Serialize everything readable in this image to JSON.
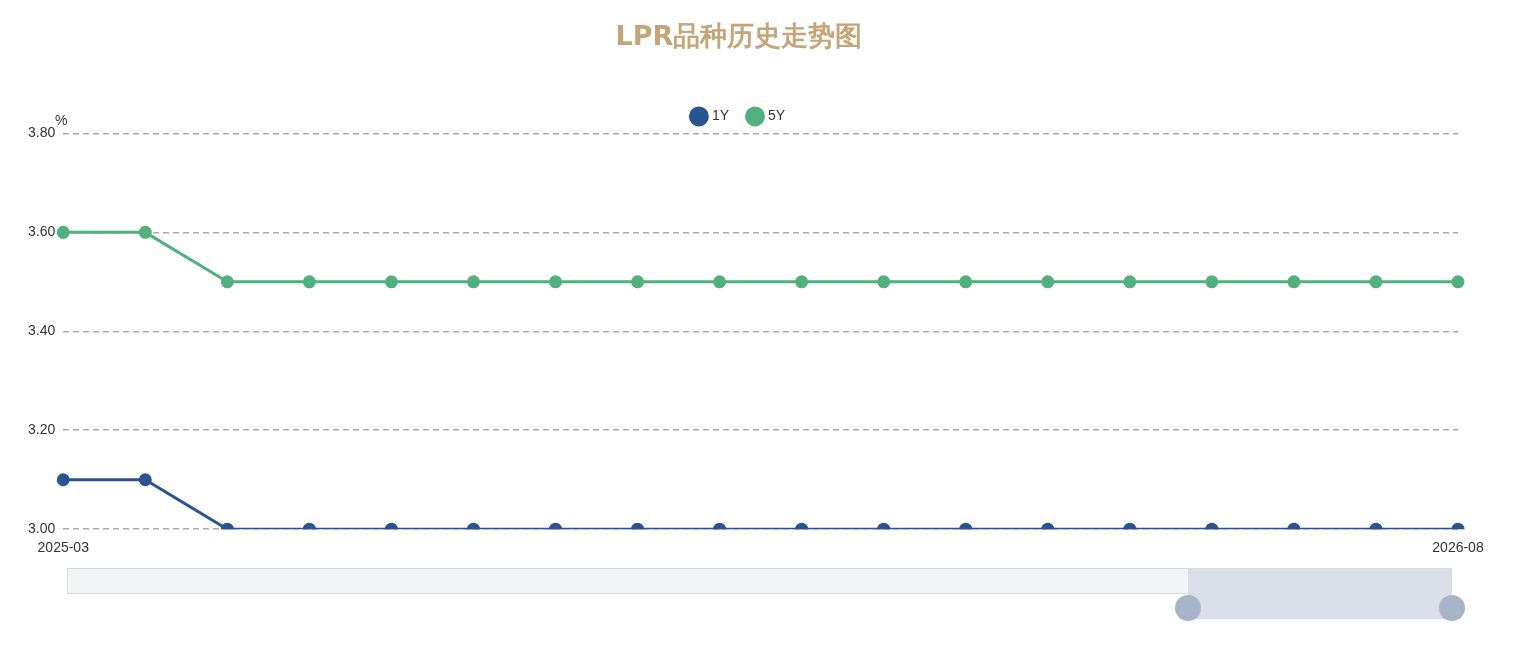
{
  "chart_data": {
    "type": "line",
    "title": "LPR品种历史走势图",
    "ylabel": "%",
    "categories": [
      "2025-03",
      null,
      null,
      null,
      null,
      null,
      null,
      null,
      null,
      null,
      null,
      null,
      null,
      null,
      null,
      null,
      null,
      "2026-08"
    ],
    "series": [
      {
        "name": "1Y",
        "color": "#2a5391",
        "values": [
          3.1,
          3.1,
          3.0,
          3.0,
          3.0,
          3.0,
          3.0,
          3.0,
          3.0,
          3.0,
          3.0,
          3.0,
          3.0,
          3.0,
          3.0,
          3.0,
          3.0,
          3.0
        ]
      },
      {
        "name": "5Y",
        "color": "#52b07e",
        "values": [
          3.6,
          3.6,
          3.5,
          3.5,
          3.5,
          3.5,
          3.5,
          3.5,
          3.5,
          3.5,
          3.5,
          3.5,
          3.5,
          3.5,
          3.5,
          3.5,
          3.5,
          3.5
        ]
      }
    ],
    "ylim": [
      3.0,
      3.8
    ],
    "yticks": [
      {
        "value": 3.0,
        "label": "3.00"
      },
      {
        "value": 3.2,
        "label": "3.20"
      },
      {
        "value": 3.4,
        "label": "3.40"
      },
      {
        "value": 3.6,
        "label": "3.60"
      },
      {
        "value": 3.8,
        "label": "3.80"
      }
    ],
    "grid": "y",
    "legend": "top",
    "marker": "circle",
    "line_style": "solid"
  }
}
